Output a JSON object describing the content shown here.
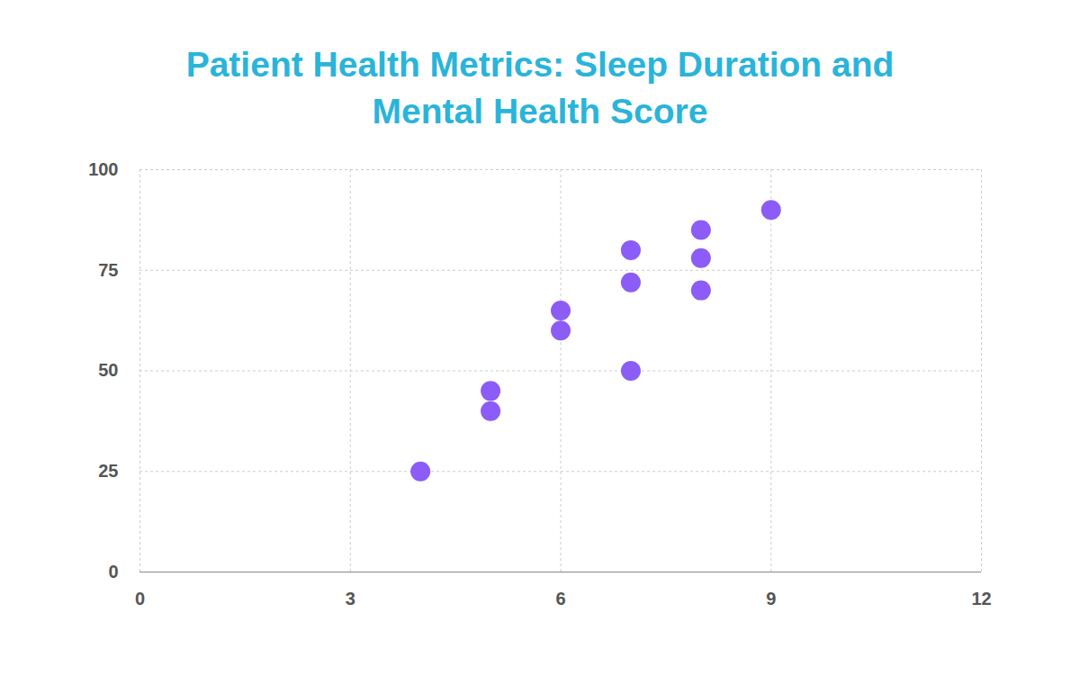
{
  "chart_data": {
    "type": "scatter",
    "title": "Patient Health Metrics: Sleep Duration and Mental Health Score",
    "x": [
      4,
      5,
      5,
      6,
      6,
      7,
      7,
      7,
      8,
      8,
      8,
      9
    ],
    "values": [
      25,
      45,
      40,
      65,
      60,
      80,
      72,
      50,
      85,
      78,
      70,
      90
    ],
    "color": "#8b5cf6",
    "marker": "circle",
    "xlim": [
      0,
      12
    ],
    "xticks": [
      0,
      3,
      6,
      9,
      12
    ],
    "ylim": [
      0,
      100
    ],
    "yticks": [
      0,
      25,
      50,
      75,
      100
    ],
    "grid": true
  }
}
